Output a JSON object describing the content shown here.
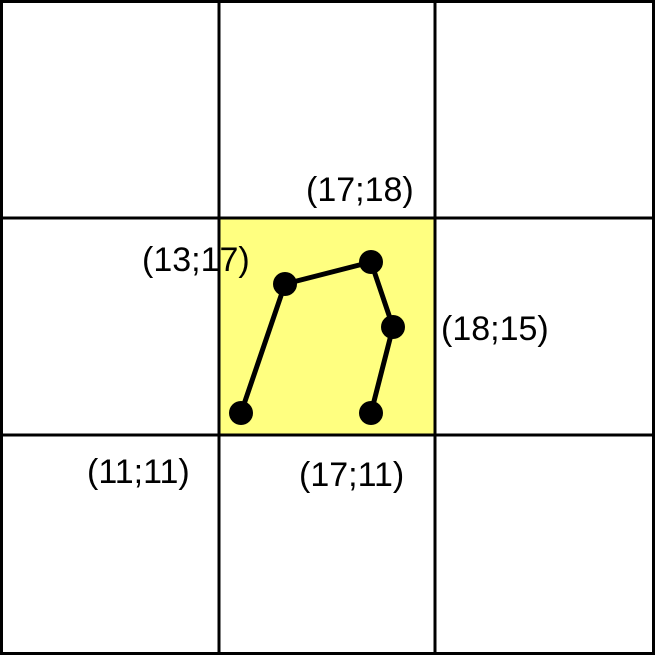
{
  "colors": {
    "background": "#ffffff",
    "grid_line": "#000000",
    "highlight_cell": "#ffff80",
    "path": "#000000",
    "point": "#000000",
    "text": "#000000"
  },
  "grid": {
    "rows": 3,
    "cols": 3,
    "highlighted_cell": {
      "row": 1,
      "col": 1
    }
  },
  "points": [
    {
      "id": "p1",
      "label": "(11;11)",
      "coords": [
        11,
        11
      ]
    },
    {
      "id": "p2",
      "label": "(13;17)",
      "coords": [
        13,
        17
      ]
    },
    {
      "id": "p3",
      "label": "(17;18)",
      "coords": [
        17,
        18
      ]
    },
    {
      "id": "p4",
      "label": "(18;15)",
      "coords": [
        18,
        15
      ]
    },
    {
      "id": "p5",
      "label": "(17;11)",
      "coords": [
        17,
        11
      ]
    }
  ]
}
